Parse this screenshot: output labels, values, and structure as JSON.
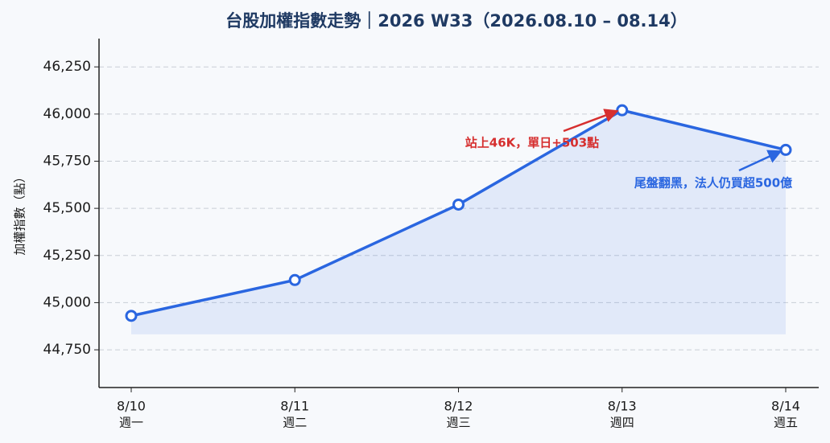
{
  "chart_data": {
    "type": "line",
    "title": "台股加權指數走勢｜2026 W33（2026.08.10 – 08.14）",
    "y_label": "加權指數（點）",
    "categories": [
      "8/10",
      "8/11",
      "8/12",
      "8/13",
      "8/14"
    ],
    "weekdays": [
      "週一",
      "週二",
      "週三",
      "週四",
      "週五"
    ],
    "series": [
      {
        "name": "加權指數",
        "color": "#2a66e0",
        "values": [
          44930,
          45120,
          45520,
          46020,
          45810
        ]
      }
    ],
    "ylim": [
      44550,
      46400
    ],
    "yticks": [
      {
        "value": 44750,
        "label": "44,750"
      },
      {
        "value": 45000,
        "label": "45,000"
      },
      {
        "value": 45250,
        "label": "45,250"
      },
      {
        "value": 45500,
        "label": "45,500"
      },
      {
        "value": 45750,
        "label": "45,750"
      },
      {
        "value": 46000,
        "label": "46,000"
      },
      {
        "value": 46250,
        "label": "46,250"
      }
    ],
    "grid": true,
    "area_fill": true,
    "annotations": [
      {
        "text": "站上46K，單日+503點",
        "color": "#d62f2f"
      },
      {
        "text": "尾盤翻黑，法人仍買超500億",
        "color": "#2a66e0"
      }
    ]
  }
}
